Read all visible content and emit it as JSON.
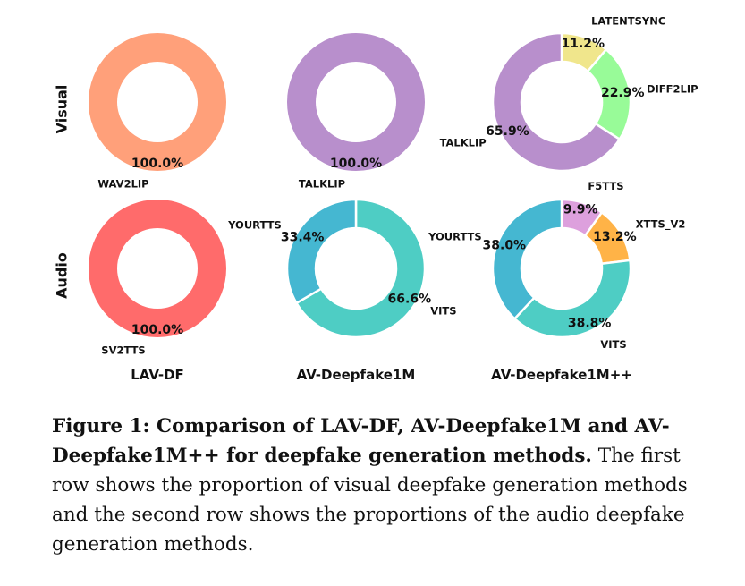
{
  "chart_data": {
    "type": "pie",
    "row_labels": [
      "Visual",
      "Audio"
    ],
    "column_labels": [
      "LAV-DF",
      "AV-Deepfake1M",
      "AV-Deepfake1M++"
    ],
    "charts": [
      {
        "row": "Visual",
        "column": "LAV-DF",
        "slices": [
          {
            "label": "WAV2LIP",
            "value": 100.0,
            "pct": "100.0%",
            "color": "#FFA07A"
          }
        ]
      },
      {
        "row": "Visual",
        "column": "AV-Deepfake1M",
        "slices": [
          {
            "label": "TALKLIP",
            "value": 100.0,
            "pct": "100.0%",
            "color": "#B88FCC"
          }
        ]
      },
      {
        "row": "Visual",
        "column": "AV-Deepfake1M++",
        "slices": [
          {
            "label": "LATENTSYNC",
            "value": 11.2,
            "pct": "11.2%",
            "color": "#F0E68C"
          },
          {
            "label": "DIFF2LIP",
            "value": 22.9,
            "pct": "22.9%",
            "color": "#98FB98"
          },
          {
            "label": "TALKLIP",
            "value": 65.9,
            "pct": "65.9%",
            "color": "#B88FCC"
          }
        ]
      },
      {
        "row": "Audio",
        "column": "LAV-DF",
        "slices": [
          {
            "label": "SV2TTS",
            "value": 100.0,
            "pct": "100.0%",
            "color": "#FF6B6B"
          }
        ]
      },
      {
        "row": "Audio",
        "column": "AV-Deepfake1M",
        "slices": [
          {
            "label": "VITS",
            "value": 66.6,
            "pct": "66.6%",
            "color": "#4ECDC4"
          },
          {
            "label": "YOURTTS",
            "value": 33.4,
            "pct": "33.4%",
            "color": "#45B7D1"
          }
        ]
      },
      {
        "row": "Audio",
        "column": "AV-Deepfake1M++",
        "slices": [
          {
            "label": "F5TTS",
            "value": 9.9,
            "pct": "9.9%",
            "color": "#DDA0DD"
          },
          {
            "label": "XTTS_V2",
            "value": 13.2,
            "pct": "13.2%",
            "color": "#FFB347"
          },
          {
            "label": "VITS",
            "value": 38.8,
            "pct": "38.8%",
            "color": "#4ECDC4"
          },
          {
            "label": "YOURTTS",
            "value": 38.0,
            "pct": "38.0%",
            "color": "#45B7D1"
          }
        ]
      }
    ]
  },
  "caption": {
    "label": "Figure 1: Comparison of LAV-DF, AV-Deepfake1M and AV-Deepfake1M++ for deepfake generation methods.",
    "text": " The first row shows the proportion of visual deepfake generation methods and the second row shows the proportions of the audio deepfake generation methods."
  }
}
